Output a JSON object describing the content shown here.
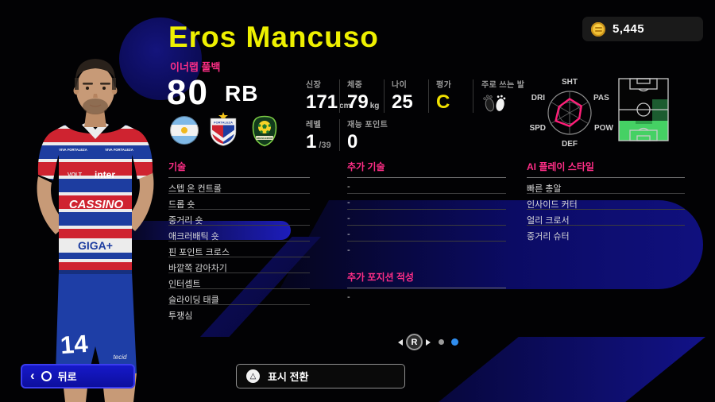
{
  "header": {
    "player_name": "Eros Mancuso",
    "role": "이너랩 풀백",
    "coins": "5,445"
  },
  "overview": {
    "rating": "80",
    "position": "RB",
    "stats": {
      "height": {
        "label": "신장",
        "value": "171",
        "unit": "cm"
      },
      "weight": {
        "label": "체중",
        "value": "79",
        "unit": "kg"
      },
      "age": {
        "label": "나이",
        "value": "25"
      },
      "grade": {
        "label": "평가",
        "value": "C"
      },
      "foot": {
        "label": "주로 쓰는 발"
      }
    },
    "level": {
      "label": "레벨",
      "value": "1",
      "max": "/39"
    },
    "talent": {
      "label": "재능 포인트",
      "value": "0"
    },
    "badges": [
      {
        "name": "argentina-flag"
      },
      {
        "name": "fortaleza-club-badge",
        "text": "FORTALEZA"
      },
      {
        "name": "brazil-league-badge",
        "text": "BRASILEIRÃO"
      }
    ]
  },
  "radar": {
    "labels": [
      "SHT",
      "PAS",
      "POW",
      "DEF",
      "SPD",
      "DRI"
    ],
    "values": [
      0.65,
      0.63,
      0.52,
      0.62,
      0.75,
      0.57
    ]
  },
  "sections": {
    "skills": {
      "title": "기술",
      "items": [
        "스텝 온 컨트롤",
        "드롭 숏",
        "중거리 숏",
        "애크러배틱 숏",
        "핀 포인트 크로스",
        "바깥쪽 감아차기",
        "인터셉트",
        "슬라이딩 태클",
        "투쟁심"
      ],
      "selected": "애크러배틱 숏"
    },
    "extra_skills": {
      "title": "추가 기술",
      "items": [
        "-",
        "-",
        "-",
        "-",
        "-"
      ]
    },
    "extra_positions": {
      "title": "추가 포지션 적성",
      "items": [
        "-"
      ]
    },
    "ai_playstyles": {
      "title": "AI 플레이 스타일",
      "items": [
        "빠른 총알",
        "인사이드 커터",
        "얼리 크로서",
        "중거리 슈터"
      ]
    }
  },
  "jersey": {
    "number": "14",
    "collar": "VIVA FORTALEZA",
    "sponsor_volt": "VOLT",
    "sponsor_top": "inter",
    "sponsor_mid": "CASSINO",
    "sponsor_low": "GIGA+",
    "shorts_brand": "tecid"
  },
  "pager": {
    "button": "R"
  },
  "footer": {
    "back": "뒤로",
    "toggle": "표시 전환"
  },
  "colors": {
    "accent_pink": "#ff2e87",
    "title_yellow": "#eef000",
    "grade_yellow": "#f0e000",
    "radar_pink": "#ff1e78",
    "selection_blue": "#1d1dbb",
    "pager_blue": "#2f8def",
    "field_green_bright": "#45d164",
    "field_green_dark": "#1c5c30",
    "coin_gold": "#e2a81c"
  }
}
